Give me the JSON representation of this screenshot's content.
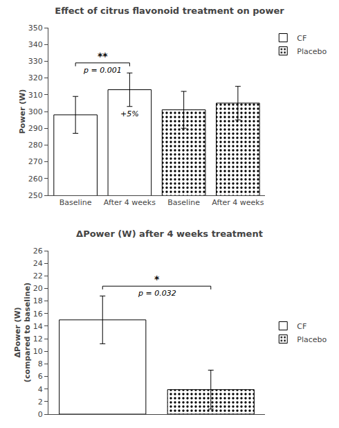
{
  "chart_data": [
    {
      "type": "bar",
      "title": "Effect of citrus flavonoid treatment on power",
      "ylabel": "Power (W)",
      "categories": [
        "Baseline",
        "After 4 weeks",
        "Baseline",
        "After 4 weeks"
      ],
      "series": [
        {
          "name": "CF",
          "color": "#ffffff",
          "values": [
            298,
            313,
            null,
            null
          ],
          "errors": [
            11,
            10,
            null,
            null
          ]
        },
        {
          "name": "Placebo",
          "color": "#aaaaaa",
          "values": [
            null,
            null,
            301,
            305
          ],
          "errors": [
            null,
            null,
            11,
            10
          ]
        }
      ],
      "ylim": [
        250,
        350
      ],
      "yticks": [
        250,
        260,
        270,
        280,
        290,
        300,
        310,
        320,
        330,
        340,
        350
      ],
      "grid": false,
      "legend": "upper right",
      "annotations": [
        {
          "text": "+5%",
          "x": 1
        },
        {
          "text": "**",
          "x": [
            0,
            1
          ]
        },
        {
          "text": "p = 0.001",
          "x": [
            0,
            1
          ]
        }
      ]
    },
    {
      "type": "bar",
      "title": "ΔPower (W) after 4 weeks treatment",
      "ylabel": "ΔPower (W)\n(compared to baseline)",
      "categories": [
        null,
        null
      ],
      "series": [
        {
          "name": "CF",
          "color": "#ffffff",
          "values": [
            15,
            null
          ],
          "errors": [
            3.8,
            null
          ]
        },
        {
          "name": "Placebo",
          "color": "#aaaaaa",
          "values": [
            null,
            3.9
          ],
          "errors": [
            null,
            3.1
          ]
        }
      ],
      "ylim": [
        0,
        26
      ],
      "yticks": [
        0,
        2,
        4,
        6,
        8,
        10,
        12,
        14,
        16,
        18,
        20,
        22,
        24,
        26
      ],
      "grid": false,
      "legend": "right",
      "tick_labels": "y",
      "annotations": [
        {
          "text": "*",
          "x": [
            0,
            1
          ]
        },
        {
          "text": "p = 0.032",
          "x": [
            0,
            1
          ]
        }
      ]
    }
  ]
}
